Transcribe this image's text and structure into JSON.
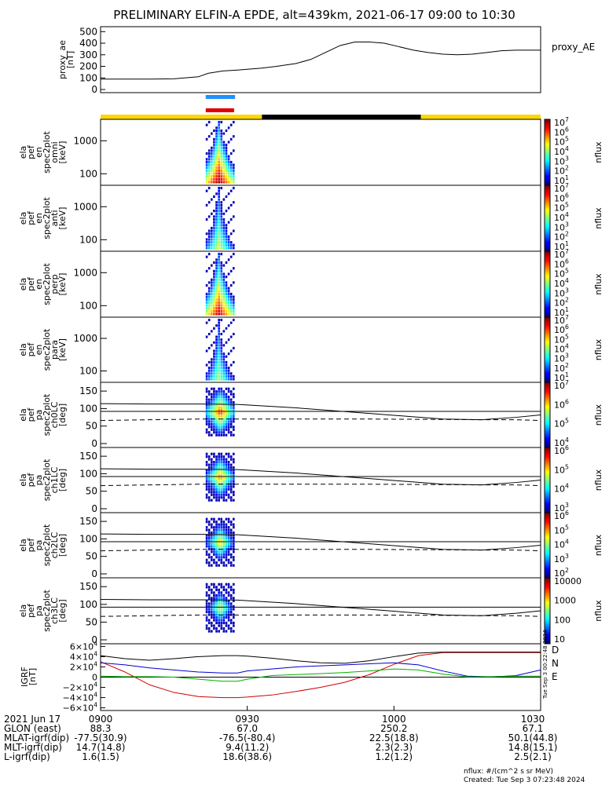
{
  "title": "PRELIMINARY ELFIN-A EPDE, alt=439km, 2021-06-17 09:00 to 10:30",
  "ae_panel": {
    "ylabel": [
      "proxy_ae",
      "[nT]"
    ],
    "legend": "proxy_AE",
    "yticks": [
      "500",
      "400",
      "300",
      "200",
      "100",
      "0"
    ],
    "ylim": [
      0,
      550
    ]
  },
  "spec_panels": [
    {
      "ylabel": [
        "ela",
        "pef",
        "en",
        "spec2plot",
        "omni",
        "[keV]"
      ],
      "yticks": [
        "1000",
        "100"
      ]
    },
    {
      "ylabel": [
        "ela",
        "pef",
        "en",
        "spec2plot",
        "anti",
        "[keV]"
      ],
      "yticks": [
        "1000",
        "100"
      ]
    },
    {
      "ylabel": [
        "ela",
        "pef",
        "en",
        "spec2plot",
        "perp",
        "[keV]"
      ],
      "yticks": [
        "1000",
        "100"
      ]
    },
    {
      "ylabel": [
        "ela",
        "pef",
        "en",
        "spec2plot",
        "para",
        "[keV]"
      ],
      "yticks": [
        "1000",
        "100"
      ]
    }
  ],
  "pa_panels": [
    {
      "ylabel": [
        "ela",
        "pef",
        "pa",
        "spec2plot",
        "ch0LC",
        "[deg]"
      ],
      "yticks": [
        "150",
        "100",
        "50",
        "0"
      ]
    },
    {
      "ylabel": [
        "ela",
        "pef",
        "pa",
        "spec2plot",
        "ch1LC",
        "[deg]"
      ],
      "yticks": [
        "150",
        "100",
        "50",
        "0"
      ]
    },
    {
      "ylabel": [
        "ela",
        "pef",
        "pa",
        "spec2plot",
        "ch2LC",
        "[deg]"
      ],
      "yticks": [
        "150",
        "100",
        "50",
        "0"
      ]
    },
    {
      "ylabel": [
        "ela",
        "pef",
        "pa",
        "spec2plot",
        "ch3LC",
        "[deg]"
      ],
      "yticks": [
        "150",
        "100",
        "50",
        "0"
      ]
    }
  ],
  "colorbar_label": "nflux",
  "colorbars": [
    [
      "10^7",
      "10^6",
      "10^5",
      "10^4",
      "10^3",
      "10^2",
      "10^1"
    ],
    [
      "10^7",
      "10^6",
      "10^5",
      "10^4",
      "10^3",
      "10^2",
      "10^1"
    ],
    [
      "10^7",
      "10^6",
      "10^5",
      "10^4",
      "10^3",
      "10^2",
      "10^1"
    ],
    [
      "10^7",
      "10^6",
      "10^5",
      "10^4",
      "10^3",
      "10^2",
      "10^1"
    ],
    [
      "10^7",
      "10^6",
      "10^5",
      "10^4"
    ],
    [
      "10^6",
      "10^5",
      "10^4",
      "10^3"
    ],
    [
      "10^6",
      "10^5",
      "10^4",
      "10^3",
      "10^2"
    ],
    [
      "10000",
      "1000",
      "100",
      "10"
    ]
  ],
  "igrf_panel": {
    "ylabel": [
      "IGRF",
      "[nT]"
    ],
    "yticks": [
      "6×10^4",
      "4×10^4",
      "2×10^4",
      "0",
      "−2×10^4",
      "−4×10^4",
      "−6×10^4"
    ],
    "legend": [
      "D",
      "N",
      "E"
    ],
    "legend_colors": [
      "#d00000",
      "#0000d0",
      "#00b000"
    ]
  },
  "side_stamp": "Tue Sep  3 00:22:48 2024",
  "footer": {
    "rows": [
      [
        "2021 Jun 17",
        "0900",
        "0930",
        "1000",
        "1030"
      ],
      [
        "GLON (east)",
        "88.3",
        "67.0",
        "250.2",
        "67.1"
      ],
      [
        "MLAT-igrf(dip)",
        "-77.5(30.9)",
        "-76.5(-80.4)",
        "22.5(18.8)",
        "50.1(44.8)"
      ],
      [
        "MLT-igrf(dip)",
        "14.7(14.8)",
        "9.4(11.2)",
        "2.3(2.3)",
        "14.8(15.1)"
      ],
      [
        "L-igrf(dip)",
        "1.6(1.5)",
        "18.6(38.6)",
        "1.2(1.2)",
        "2.5(2.1)"
      ]
    ],
    "units": "nflux: #/(cm^2 s sr MeV)",
    "created": "Created: Tue Sep  3 07:23:48 2024"
  },
  "chart_data": {
    "type": "line",
    "x_unit": "minutes after 09:00 UT, 2021-06-17",
    "xlim": [
      0,
      90
    ],
    "x_ticks": [
      "0900",
      "0930",
      "1000",
      "1030"
    ],
    "proxy_ae": {
      "x": [
        0,
        5,
        10,
        15,
        20,
        22,
        25,
        28,
        30,
        33,
        36,
        40,
        43,
        46,
        49,
        52,
        55,
        58,
        61,
        64,
        67,
        70,
        73,
        76,
        79,
        82,
        85,
        88,
        90
      ],
      "y": [
        90,
        90,
        90,
        92,
        110,
        140,
        160,
        168,
        175,
        185,
        200,
        225,
        260,
        320,
        380,
        410,
        410,
        400,
        370,
        340,
        320,
        305,
        300,
        305,
        320,
        335,
        340,
        340,
        340
      ]
    },
    "science_zone_bars": [
      {
        "color": "#1e90ff",
        "x": [
          21.5,
          27.5
        ]
      },
      {
        "color": "#e00000",
        "x": [
          21.5,
          27.3
        ]
      }
    ],
    "orbit_bar": [
      {
        "color": "#ffd700",
        "x": [
          0,
          33
        ]
      },
      {
        "color": "#000000",
        "x": [
          33,
          65.5
        ]
      },
      {
        "color": "#ffd700",
        "x": [
          65.5,
          90
        ]
      }
    ],
    "spectrogram_burst": {
      "x": [
        21.5,
        27.5
      ],
      "energy_range_keV": [
        50,
        4000
      ],
      "pitch_range_deg": [
        20,
        160
      ]
    },
    "igrf": {
      "x": [
        0,
        5,
        10,
        15,
        20,
        25,
        28,
        30,
        35,
        40,
        45,
        50,
        55,
        60,
        65,
        70,
        75,
        80,
        85,
        90
      ],
      "series": [
        {
          "name": "D",
          "color": "#d00000",
          "values": [
            30000,
            10000,
            -15000,
            -30000,
            -38000,
            -40000,
            -40000,
            -39000,
            -35000,
            -28000,
            -20000,
            -10000,
            5000,
            25000,
            42000,
            48000,
            48000,
            48000,
            48000,
            48000
          ]
        },
        {
          "name": "N",
          "color": "#0000d0",
          "values": [
            28000,
            24000,
            18000,
            14000,
            10000,
            8000,
            8000,
            12000,
            16000,
            20000,
            22000,
            24000,
            26000,
            28000,
            24000,
            12000,
            2000,
            500,
            3000,
            14000
          ]
        },
        {
          "name": "E",
          "color": "#00b000",
          "values": [
            2000,
            1000,
            1000,
            0,
            -4000,
            -8000,
            -8000,
            -4000,
            3000,
            5000,
            7000,
            9000,
            12000,
            16000,
            14000,
            6000,
            500,
            1000,
            2000,
            2000
          ]
        },
        {
          "name": "F",
          "color": "#000000",
          "values": [
            42000,
            36000,
            33000,
            36000,
            40000,
            42000,
            42000,
            41000,
            37000,
            32000,
            28000,
            27000,
            32000,
            40000,
            47000,
            49000,
            49000,
            49000,
            49000,
            49000
          ]
        }
      ]
    },
    "pa_lines": {
      "x": [
        0,
        10,
        20,
        28,
        40,
        55,
        70,
        78,
        85,
        90
      ],
      "lc_upper": [
        114,
        113,
        113,
        112,
        102,
        86,
        70,
        68,
        75,
        82
      ],
      "lc_lower": [
        92,
        92,
        92,
        92,
        92,
        92,
        92,
        92,
        92,
        92
      ],
      "dashed": [
        66,
        68,
        70,
        70,
        70,
        70,
        69,
        68,
        68,
        66
      ]
    }
  }
}
